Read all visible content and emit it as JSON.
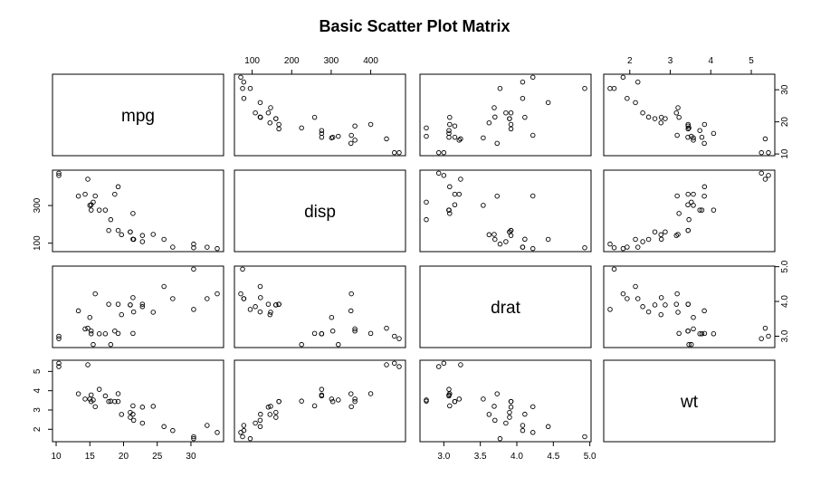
{
  "chart_data": {
    "type": "scatter",
    "title": "Basic Scatter Plot Matrix",
    "variables": [
      "mpg",
      "disp",
      "drat",
      "wt"
    ],
    "ranges": {
      "mpg": [
        10.4,
        33.9
      ],
      "disp": [
        71.1,
        472
      ],
      "drat": [
        2.76,
        4.93
      ],
      "wt": [
        1.513,
        5.424
      ]
    },
    "ticks": {
      "mpg": [
        10,
        15,
        20,
        25,
        30
      ],
      "disp": [
        100,
        200,
        300,
        400
      ],
      "drat": [
        3.0,
        3.5,
        4.0,
        4.5,
        5.0
      ],
      "wt": [
        2,
        3,
        4,
        5
      ]
    },
    "tick_labels": {
      "mpg": [
        "10",
        "15",
        "20",
        "25",
        "30"
      ],
      "disp": [
        "100",
        "200",
        "300",
        "400"
      ],
      "drat": [
        "3.0",
        "3.5",
        "4.0",
        "4.5",
        "5.0"
      ],
      "wt": [
        "2",
        "3",
        "4",
        "5"
      ]
    },
    "axis_sides": {
      "bottom": [
        0,
        2
      ],
      "top": [
        1,
        3
      ],
      "left": [
        1,
        3
      ],
      "right": [
        0,
        2
      ]
    },
    "axis_ticks": {
      "bottom": [
        [
          10,
          15,
          20,
          25,
          30
        ],
        [
          3.0,
          3.5,
          4.0,
          4.5,
          5.0
        ]
      ],
      "top": [
        [
          100,
          200,
          300,
          400
        ],
        [
          2,
          3,
          4,
          5
        ]
      ],
      "left": [
        [
          100,
          300
        ],
        [
          2,
          3,
          4,
          5
        ]
      ],
      "right": [
        [
          10,
          20,
          30
        ],
        [
          3.0,
          4.0,
          5.0
        ]
      ]
    },
    "axis_tick_labels": {
      "bottom": [
        [
          "10",
          "15",
          "20",
          "25",
          "30"
        ],
        [
          "3.0",
          "3.5",
          "4.0",
          "4.5",
          "5.0"
        ]
      ],
      "top": [
        [
          "100",
          "200",
          "300",
          "400"
        ],
        [
          "2",
          "3",
          "4",
          "5"
        ]
      ],
      "left": [
        [
          "100",
          "300"
        ],
        [
          "2",
          "3",
          "4",
          "5"
        ]
      ],
      "right": [
        [
          "10",
          "20",
          "30"
        ],
        [
          "3.0",
          "4.0",
          "5.0"
        ]
      ]
    },
    "points": {
      "mpg": [
        21.0,
        21.0,
        22.8,
        21.4,
        18.7,
        18.1,
        14.3,
        24.4,
        22.8,
        19.2,
        17.8,
        16.4,
        17.3,
        15.2,
        10.4,
        10.4,
        14.7,
        32.4,
        30.4,
        33.9,
        21.5,
        15.5,
        15.2,
        13.3,
        19.2,
        27.3,
        26.0,
        30.4,
        15.8,
        19.7,
        15.0,
        21.4
      ],
      "disp": [
        160,
        160,
        108,
        258,
        360,
        225,
        360,
        146.7,
        140.8,
        167.6,
        167.6,
        275.8,
        275.8,
        275.8,
        472,
        460,
        440,
        78.7,
        75.7,
        71.1,
        120.1,
        318,
        304,
        350,
        400,
        79,
        120.3,
        95.1,
        351,
        145,
        301,
        121
      ],
      "drat": [
        3.9,
        3.9,
        3.85,
        3.08,
        3.15,
        2.76,
        3.21,
        3.69,
        3.92,
        3.92,
        3.92,
        3.07,
        3.07,
        3.07,
        2.93,
        3.0,
        3.23,
        4.08,
        4.93,
        4.22,
        3.7,
        2.76,
        3.15,
        3.73,
        3.08,
        4.08,
        4.43,
        3.77,
        4.22,
        3.62,
        3.54,
        4.11
      ],
      "wt": [
        2.62,
        2.875,
        2.32,
        3.215,
        3.44,
        3.46,
        3.57,
        3.19,
        3.15,
        3.44,
        3.44,
        4.07,
        3.73,
        3.78,
        5.25,
        5.424,
        5.345,
        2.2,
        1.615,
        1.835,
        2.465,
        3.52,
        3.435,
        3.84,
        3.845,
        1.935,
        2.14,
        1.513,
        3.17,
        2.77,
        3.57,
        2.78
      ]
    }
  }
}
